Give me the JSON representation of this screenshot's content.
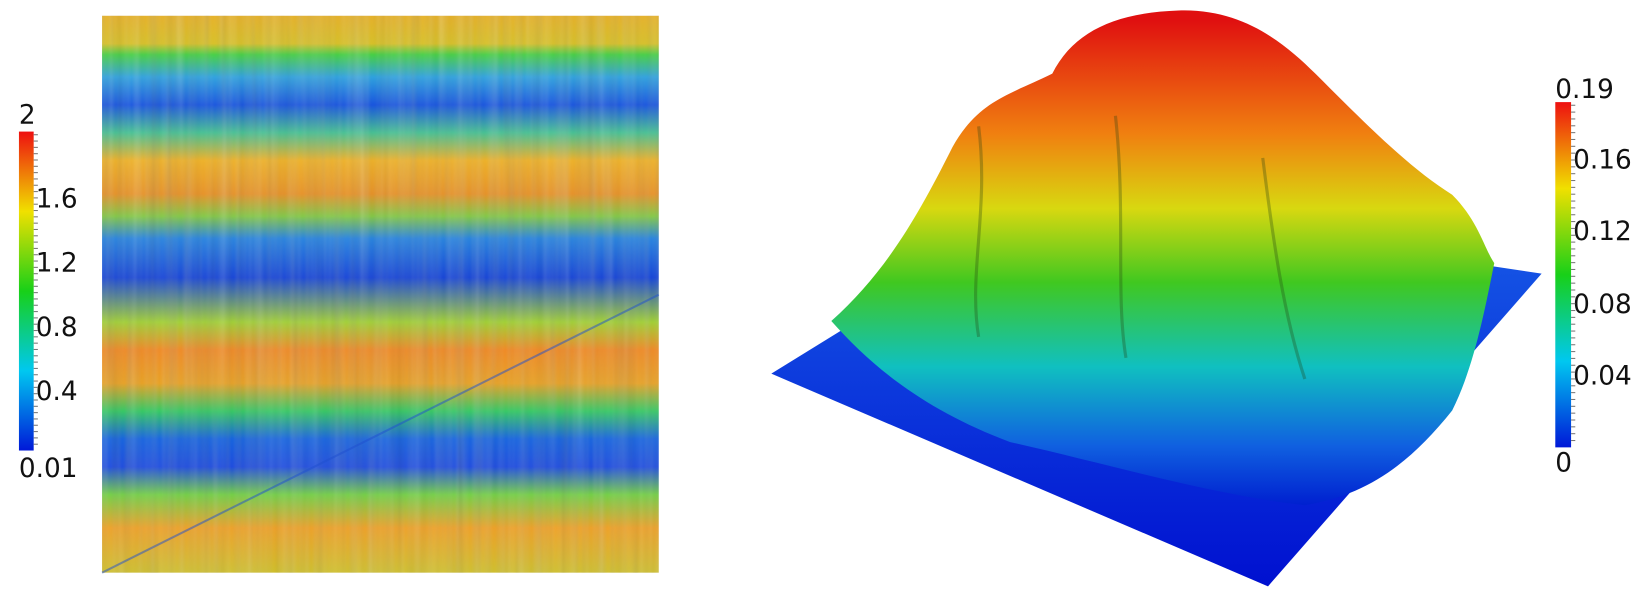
{
  "left_colorbar": {
    "labels": [
      "2",
      "1.6",
      "1.2",
      "0.8",
      "0.4",
      "0.01"
    ]
  },
  "right_colorbar": {
    "labels": [
      "0.19",
      "0.16",
      "0.12",
      "0.08",
      "0.04",
      "0"
    ]
  }
}
